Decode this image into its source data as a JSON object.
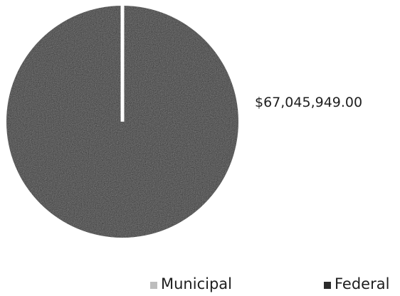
{
  "chart_data": {
    "type": "pie",
    "slices": [
      {
        "label": "Municipal",
        "value": 0,
        "color": "#bdbdbd"
      },
      {
        "label": "Federal",
        "value": 67045949.0,
        "color": "#2b2b2b"
      }
    ],
    "data_labels": [
      "$67,045,949.00"
    ],
    "legend": [
      "Municipal",
      "Federal"
    ],
    "legend_position": "bottom"
  }
}
